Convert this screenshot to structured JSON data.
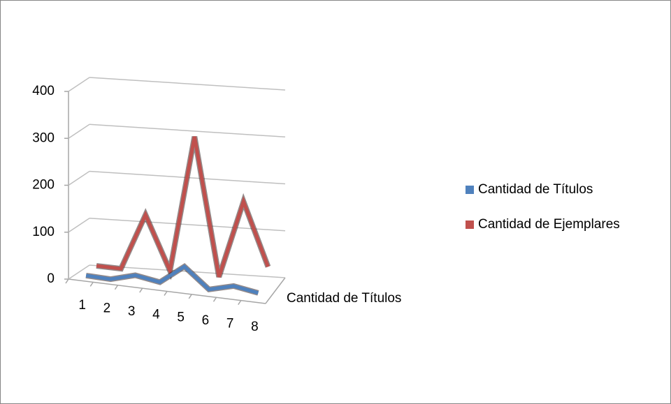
{
  "chart_data": {
    "type": "line3d",
    "categories": [
      "1",
      "2",
      "3",
      "4",
      "5",
      "6",
      "7",
      "8"
    ],
    "series": [
      {
        "name": "Cantidad de Títulos",
        "color": "#4f81bd",
        "values": [
          3,
          1,
          15,
          6,
          45,
          2,
          15,
          6
        ]
      },
      {
        "name": "Cantidad de Ejemplares",
        "color": "#c0504d",
        "values": [
          8,
          6,
          125,
          10,
          300,
          5,
          170,
          35
        ]
      }
    ],
    "depth_axis_label": "Cantidad de Títulos",
    "ylim": [
      0,
      400
    ],
    "yticks": [
      0,
      100,
      200,
      300,
      400
    ],
    "grid": true,
    "legend": "right"
  }
}
